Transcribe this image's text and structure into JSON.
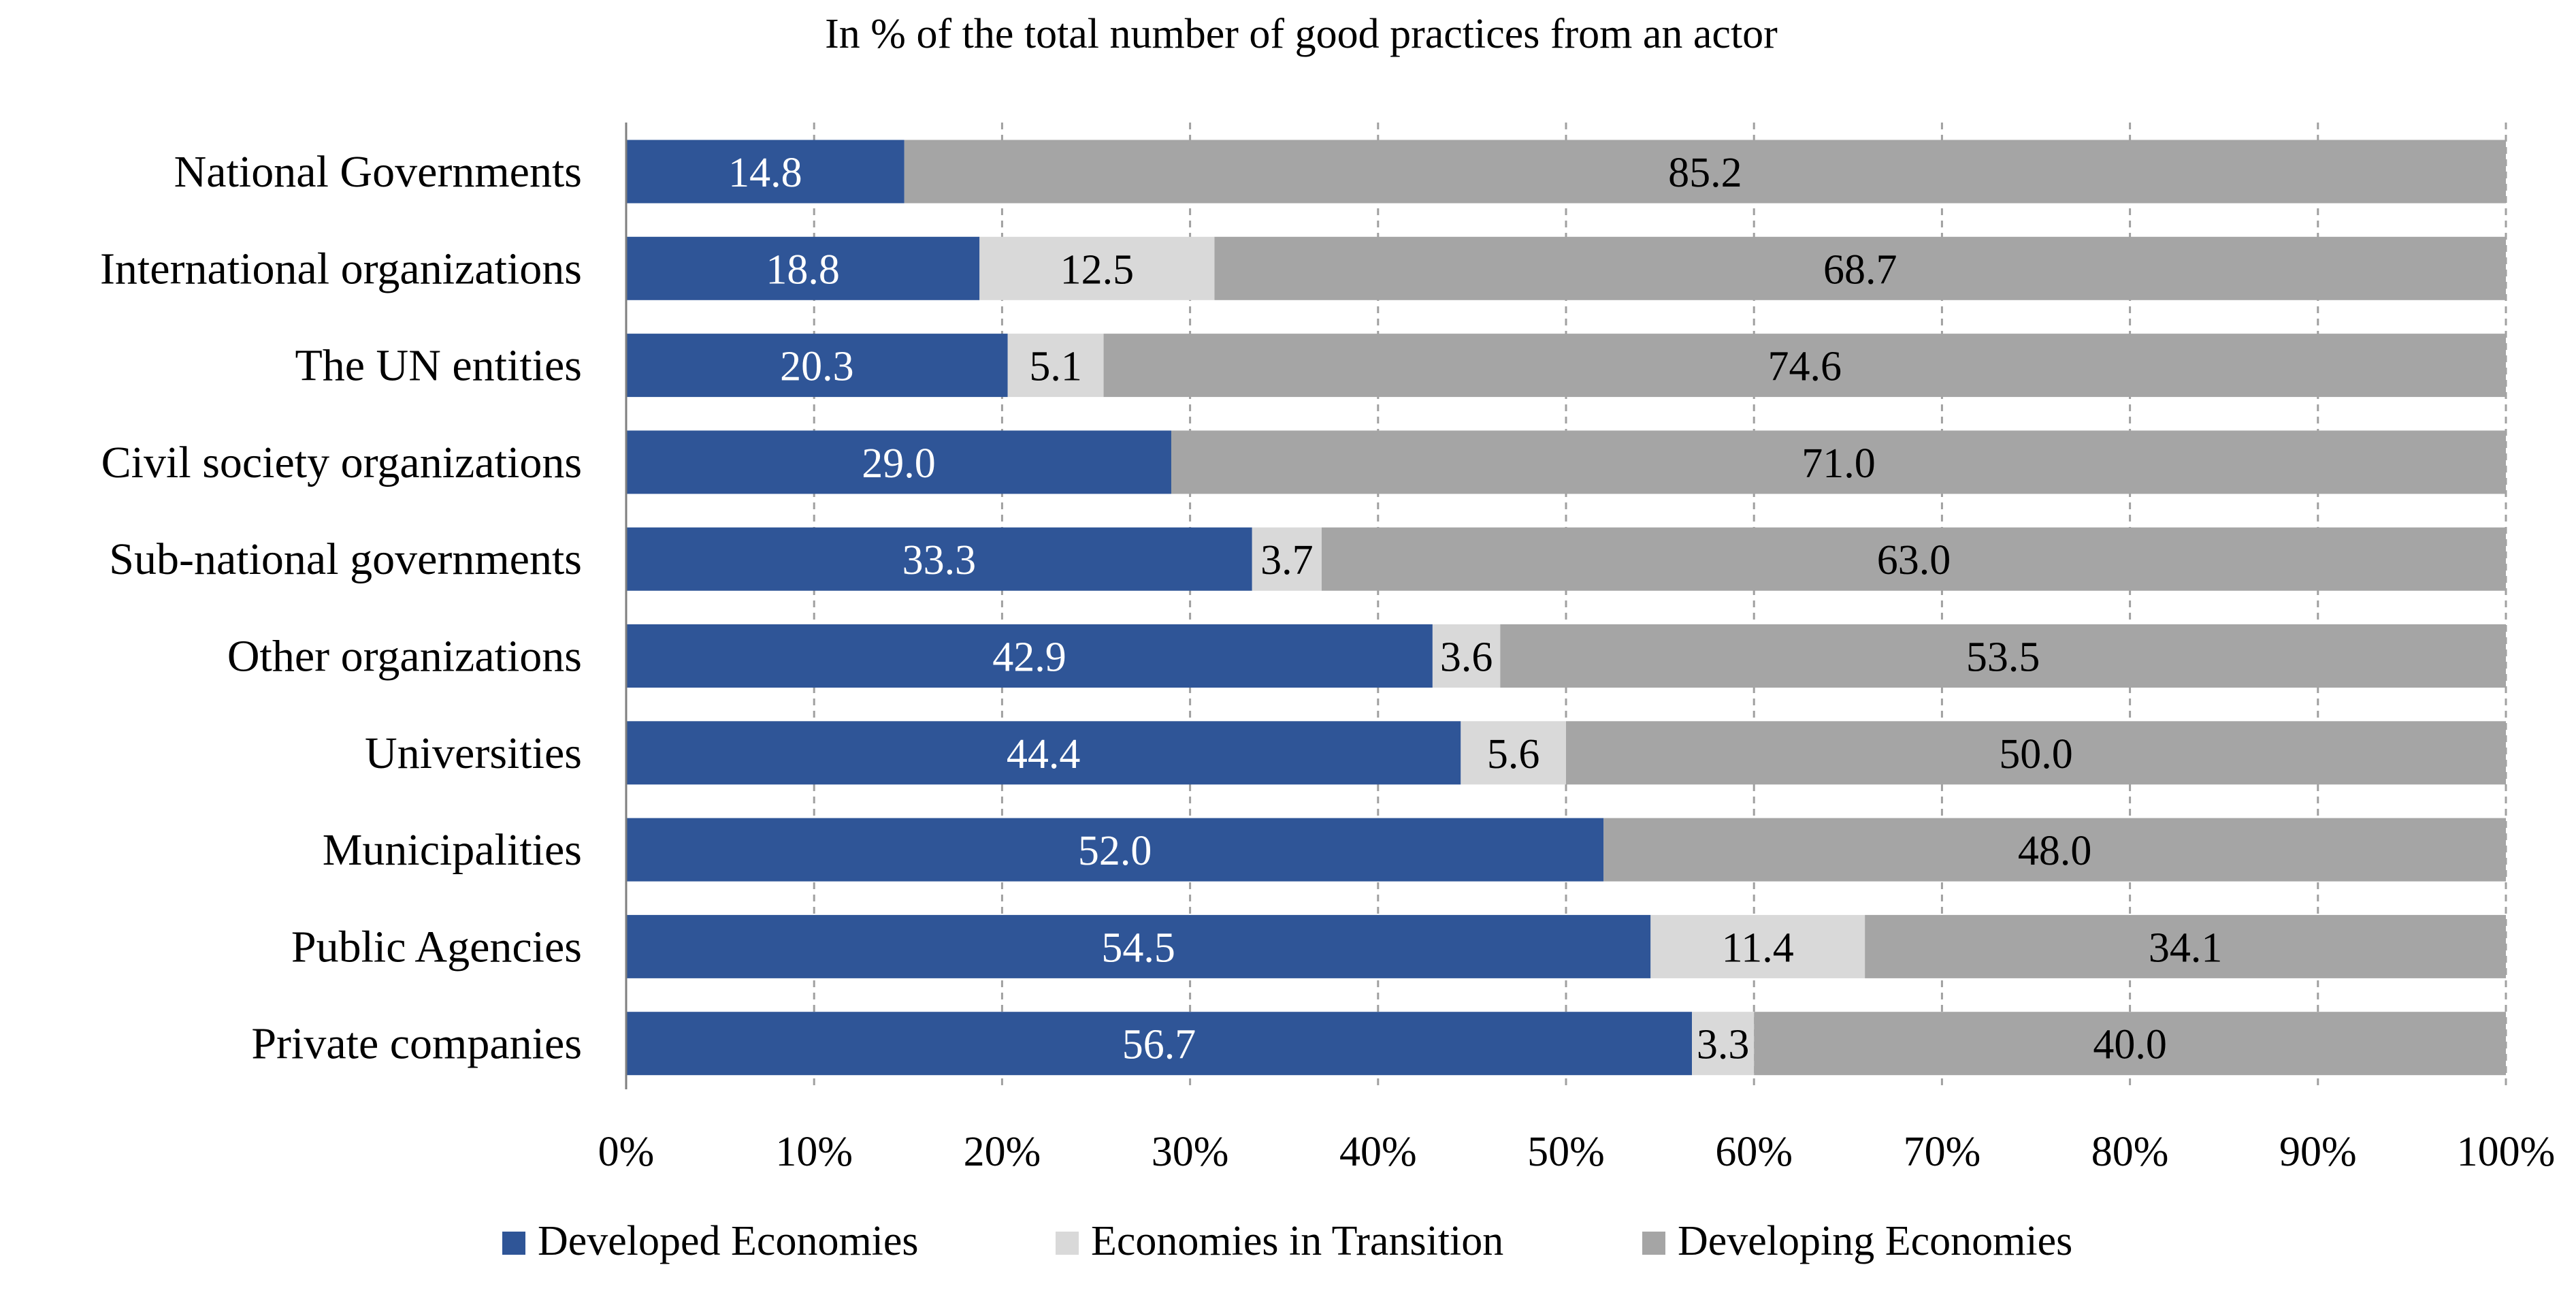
{
  "chart_data": {
    "type": "bar",
    "orientation": "horizontal",
    "stacked": true,
    "percent_stacked": true,
    "title": "In % of the total number of good practices from an actor",
    "xlabel": "",
    "ylabel": "",
    "xlim": [
      0,
      100
    ],
    "x_ticks": [
      "0%",
      "10%",
      "20%",
      "30%",
      "40%",
      "50%",
      "60%",
      "70%",
      "80%",
      "90%",
      "100%"
    ],
    "grid": "vertical-dashed",
    "legend_position": "bottom",
    "categories": [
      "National Governments",
      "International organizations",
      "The UN entities",
      "Civil society organizations",
      "Sub-national governments",
      "Other organizations",
      "Universities",
      "Municipalities",
      "Public Agencies",
      "Private companies"
    ],
    "series": [
      {
        "name": "Developed Economies",
        "color": "#2F5597",
        "values": [
          14.8,
          18.8,
          20.3,
          29.0,
          33.3,
          42.9,
          44.4,
          52.0,
          54.5,
          56.7
        ],
        "labels": [
          "14.8",
          "18.8",
          "20.3",
          "29.0",
          "33.3",
          "42.9",
          "44.4",
          "52.0",
          "54.5",
          "56.7"
        ]
      },
      {
        "name": "Economies in Transition",
        "color": "#D9D9D9",
        "values": [
          0,
          12.5,
          5.1,
          0,
          3.7,
          3.6,
          5.6,
          0,
          11.4,
          3.3
        ],
        "labels": [
          "",
          "12.5",
          "5.1",
          "",
          "3.7",
          "3.6",
          "5.6",
          "",
          "11.4",
          "3.3"
        ]
      },
      {
        "name": "Developing Economies",
        "color": "#A5A5A5",
        "values": [
          85.2,
          68.7,
          74.6,
          71.0,
          63.0,
          53.5,
          50.0,
          48.0,
          34.1,
          40.0
        ],
        "labels": [
          "85.2",
          "68.7",
          "74.6",
          "71.0",
          "63.0",
          "53.5",
          "50.0",
          "48.0",
          "34.1",
          "40.0"
        ]
      }
    ]
  }
}
